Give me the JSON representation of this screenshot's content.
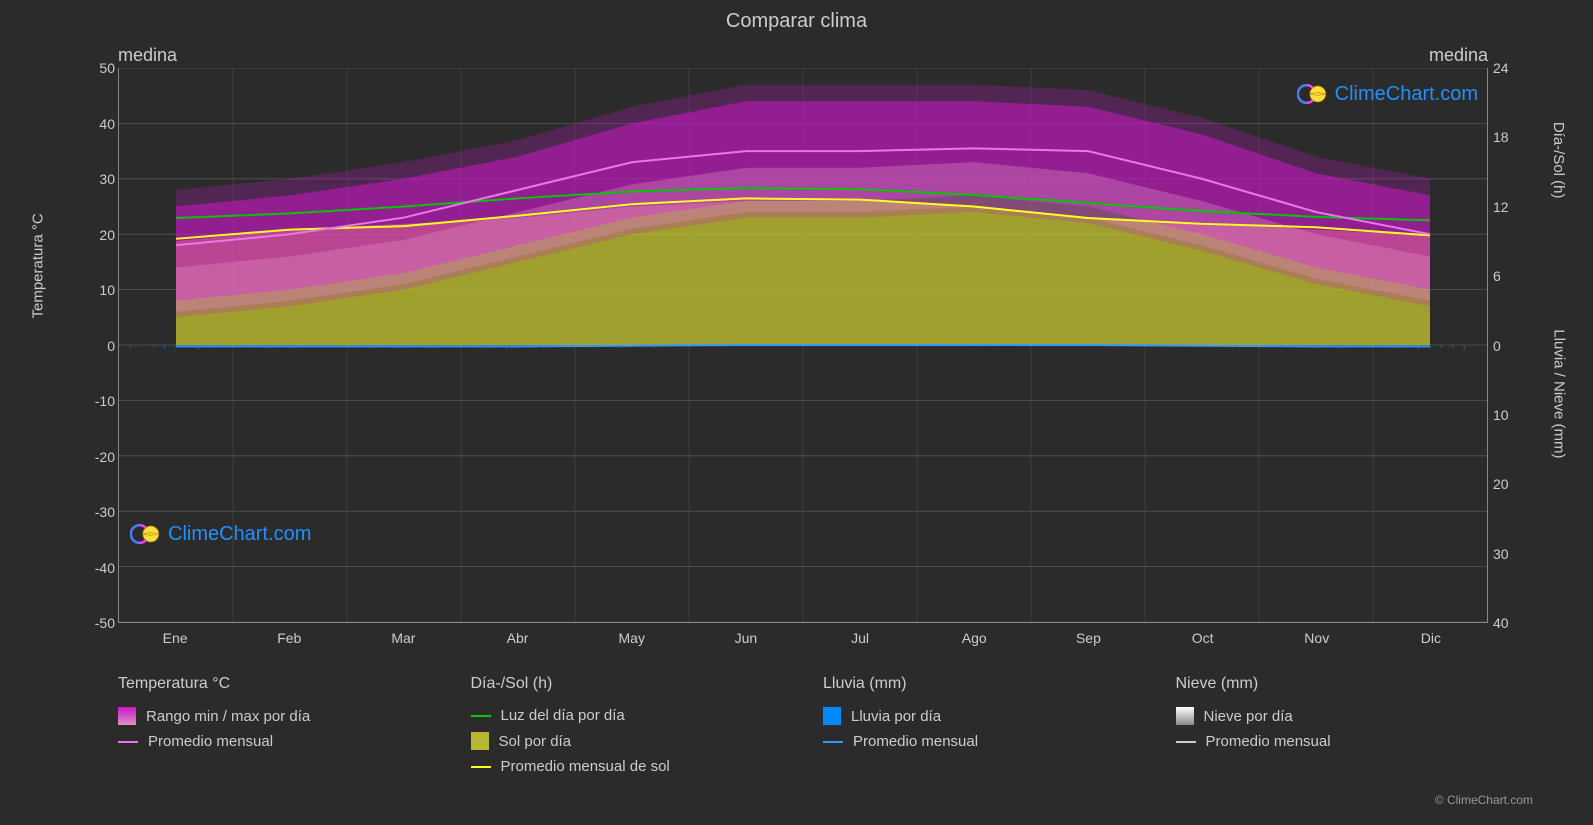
{
  "chart": {
    "type": "climate-comparison",
    "title": "Comparar clima",
    "subtitle_left": "medina",
    "subtitle_right": "medina",
    "background_color": "#2b2b2b",
    "grid_color": "#555555",
    "text_color": "#cccccc",
    "title_fontsize": 20,
    "label_fontsize": 15,
    "tick_fontsize": 14,
    "y_left": {
      "label": "Temperatura °C",
      "min": -50,
      "max": 50,
      "ticks": [
        50,
        40,
        30,
        20,
        10,
        0,
        -10,
        -20,
        -30,
        -40,
        -50
      ]
    },
    "y_right_top": {
      "label": "Día-/Sol (h)",
      "min": 0,
      "max": 24,
      "ticks": [
        24,
        18,
        12,
        6,
        0
      ]
    },
    "y_right_bottom": {
      "label": "Lluvia / Nieve (mm)",
      "min": 0,
      "max": 40,
      "ticks": [
        0,
        10,
        20,
        30,
        40
      ]
    },
    "x": {
      "months": [
        "Ene",
        "Feb",
        "Mar",
        "Abr",
        "May",
        "Jun",
        "Jul",
        "Ago",
        "Sep",
        "Oct",
        "Nov",
        "Dic"
      ]
    },
    "series": {
      "temp_range": {
        "color_fill": "#c818c8",
        "color_fill_soft": "#e090c0",
        "max": [
          25,
          27,
          30,
          34,
          40,
          44,
          44,
          44,
          43,
          38,
          31,
          27
        ],
        "min": [
          8,
          10,
          13,
          18,
          23,
          26,
          26,
          27,
          25,
          20,
          14,
          10
        ]
      },
      "temp_avg": {
        "color": "#e878e8",
        "values": [
          18,
          20,
          23,
          28,
          33,
          35,
          35,
          35.5,
          35,
          30,
          24,
          20
        ]
      },
      "daylight": {
        "color": "#00c800",
        "hours": [
          11.0,
          11.4,
          12.0,
          12.7,
          13.3,
          13.6,
          13.5,
          13.0,
          12.3,
          11.6,
          11.1,
          10.8
        ]
      },
      "sun_area": {
        "color": "#c8c830",
        "hours": [
          9,
          10,
          10.5,
          11,
          12,
          12.5,
          12.5,
          12,
          11,
          10.5,
          10,
          9.5
        ]
      },
      "sun_avg": {
        "color": "#ffff20",
        "hours": [
          9.2,
          10,
          10.3,
          11.2,
          12.2,
          12.7,
          12.6,
          12.0,
          11.0,
          10.5,
          10.2,
          9.5
        ]
      },
      "rain_daily": {
        "color": "#0088ff",
        "values": [
          0.3,
          0.2,
          0.3,
          0.3,
          0.2,
          0.0,
          0.0,
          0.1,
          0.0,
          0.1,
          0.3,
          0.3
        ]
      },
      "rain_avg": {
        "color": "#3399ff",
        "values": [
          0.2,
          0.2,
          0.2,
          0.2,
          0.1,
          0.0,
          0.0,
          0.0,
          0.0,
          0.1,
          0.2,
          0.2
        ]
      }
    },
    "watermark": {
      "text": "ClimeChart.com",
      "text_color": "#2090ff",
      "logo_colors": {
        "ring1": "#ff40ff",
        "ring2": "#4080ff",
        "sphere1": "#ffdd40",
        "sphere2": "#e0a020"
      }
    },
    "copyright": "© ClimeChart.com"
  },
  "legend": {
    "columns": [
      {
        "header": "Temperatura °C",
        "items": [
          {
            "type": "swatch_gradient",
            "colors": [
              "#c818c8",
              "#e090c0"
            ],
            "label": "Rango min / max por día"
          },
          {
            "type": "line",
            "color": "#e878e8",
            "label": "Promedio mensual"
          }
        ]
      },
      {
        "header": "Día-/Sol (h)",
        "items": [
          {
            "type": "line",
            "color": "#00c800",
            "label": "Luz del día por día"
          },
          {
            "type": "swatch",
            "color": "#b8b830",
            "label": "Sol por día"
          },
          {
            "type": "line",
            "color": "#ffff20",
            "label": "Promedio mensual de sol"
          }
        ]
      },
      {
        "header": "Lluvia (mm)",
        "items": [
          {
            "type": "swatch",
            "color": "#0088ff",
            "label": "Lluvia por día"
          },
          {
            "type": "line",
            "color": "#3399ff",
            "label": "Promedio mensual"
          }
        ]
      },
      {
        "header": "Nieve (mm)",
        "items": [
          {
            "type": "swatch_gradient",
            "colors": [
              "#ffffff",
              "#888888"
            ],
            "label": "Nieve por día"
          },
          {
            "type": "line",
            "color": "#cccccc",
            "label": "Promedio mensual"
          }
        ]
      }
    ]
  }
}
